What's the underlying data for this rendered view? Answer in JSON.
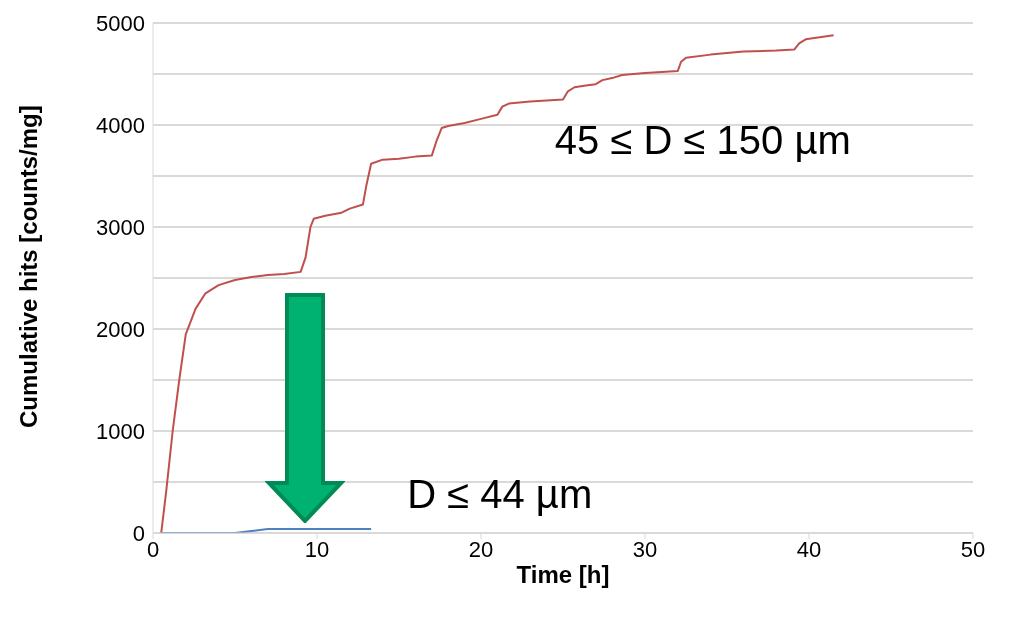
{
  "chart_data": {
    "type": "line",
    "xlabel": "Time [h]",
    "ylabel": "Cumulative hits [counts/mg]",
    "xlim": [
      0,
      50
    ],
    "xticks": [
      0,
      10,
      20,
      30,
      40,
      50
    ],
    "ylim": [
      0,
      5000
    ],
    "yticks": [
      0,
      {
        "value": 500,
        "label": null
      },
      1000,
      {
        "value": 1500,
        "label": null
      },
      2000,
      {
        "value": 2500,
        "label": null
      },
      3000,
      {
        "value": 3500,
        "label": null
      },
      4000,
      {
        "value": 4500,
        "label": null
      },
      5000
    ],
    "grid": "y",
    "marker": "none",
    "line_style": "solid",
    "series": [
      {
        "name": "45 ≤ D ≤ 150 µm",
        "color": "#c0504d",
        "x": [
          0.5,
          0.8,
          1.2,
          1.6,
          2,
          2.6,
          3.2,
          4,
          5,
          6,
          7,
          8,
          9,
          9.3,
          9.6,
          9.8,
          10.5,
          11.5,
          12,
          12.8,
          13,
          13.3,
          14,
          15,
          16,
          17,
          17.3,
          17.6,
          18,
          19,
          20,
          21,
          21.3,
          21.7,
          23,
          25,
          25.3,
          25.7,
          26.5,
          27,
          27.4,
          28,
          28.6,
          30,
          32,
          32.2,
          32.5,
          34,
          36,
          38,
          39.1,
          39.4,
          39.8,
          41.5
        ],
        "values": [
          0,
          400,
          1000,
          1500,
          1950,
          2200,
          2350,
          2430,
          2480,
          2510,
          2530,
          2540,
          2560,
          2700,
          3000,
          3080,
          3110,
          3140,
          3180,
          3220,
          3400,
          3620,
          3660,
          3670,
          3690,
          3700,
          3850,
          3970,
          3990,
          4020,
          4060,
          4100,
          4180,
          4210,
          4230,
          4250,
          4330,
          4370,
          4390,
          4400,
          4440,
          4460,
          4490,
          4510,
          4530,
          4620,
          4660,
          4690,
          4720,
          4730,
          4740,
          4800,
          4840,
          4880
        ]
      },
      {
        "name": "D ≤ 44 µm",
        "color": "#4f81bd",
        "x": [
          0.5,
          3,
          5,
          6,
          7,
          9,
          11,
          13.3
        ],
        "values": [
          0,
          0,
          0,
          20,
          40,
          40,
          40,
          40
        ]
      }
    ]
  }
}
